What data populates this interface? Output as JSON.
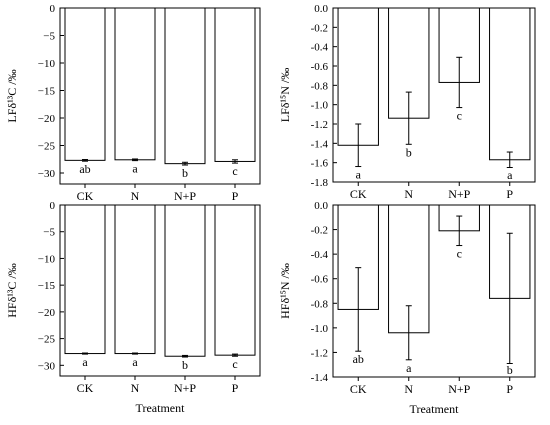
{
  "chart_data": [
    {
      "type": "bar",
      "panel": "top-left",
      "ylabel": "LFδ¹³C /‰",
      "categories": [
        "CK",
        "N",
        "N+P",
        "P"
      ],
      "values": [
        -27.7,
        -27.6,
        -28.3,
        -27.9
      ],
      "errors": [
        0.15,
        0.15,
        0.25,
        0.3
      ],
      "significance": [
        "ab",
        "a",
        "b",
        "c"
      ],
      "ylim": [
        -32,
        0
      ],
      "yticks": [
        0,
        -5,
        -10,
        -15,
        -20,
        -25,
        -30
      ],
      "ytick_labels": [
        "0",
        "−5",
        "−10",
        "−15",
        "−20",
        "−25",
        "−30"
      ],
      "xlabel": ""
    },
    {
      "type": "bar",
      "panel": "top-right",
      "ylabel": "LFδ¹⁵N /‰",
      "categories": [
        "CK",
        "N",
        "N+P",
        "P"
      ],
      "values": [
        -1.42,
        -1.14,
        -0.77,
        -1.57
      ],
      "errors": [
        0.22,
        0.27,
        0.26,
        0.08
      ],
      "significance": [
        "a",
        "b",
        "c",
        "a"
      ],
      "ylim": [
        -1.8,
        0
      ],
      "yticks": [
        0,
        -0.2,
        -0.4,
        -0.6,
        -0.8,
        -1.0,
        -1.2,
        -1.4,
        -1.6,
        -1.8
      ],
      "ytick_labels": [
        "0.0",
        "-0.2",
        "-0.4",
        "-0.6",
        "-0.8",
        "-1.0",
        "-1.2",
        "-1.4",
        "-1.6",
        "-1.8"
      ],
      "xlabel": ""
    },
    {
      "type": "bar",
      "panel": "bottom-left",
      "ylabel": "HFδ¹³C /‰",
      "categories": [
        "CK",
        "N",
        "N+P",
        "P"
      ],
      "values": [
        -27.8,
        -27.8,
        -28.3,
        -28.1
      ],
      "errors": [
        0.1,
        0.1,
        0.15,
        0.2
      ],
      "significance": [
        "a",
        "a",
        "b",
        "c"
      ],
      "ylim": [
        -32,
        0
      ],
      "yticks": [
        0,
        -5,
        -10,
        -15,
        -20,
        -25,
        -30
      ],
      "ytick_labels": [
        "0",
        "−5",
        "−10",
        "−15",
        "−20",
        "−25",
        "−30"
      ],
      "xlabel": "Treatment"
    },
    {
      "type": "bar",
      "panel": "bottom-right",
      "ylabel": "HFδ¹⁵N /‰",
      "categories": [
        "CK",
        "N",
        "N+P",
        "P"
      ],
      "values": [
        -0.85,
        -1.04,
        -0.21,
        -0.76
      ],
      "errors": [
        0.34,
        0.22,
        0.12,
        0.53
      ],
      "significance": [
        "ab",
        "a",
        "c",
        "b"
      ],
      "ylim": [
        -1.4,
        0
      ],
      "yticks": [
        0,
        -0.2,
        -0.4,
        -0.6,
        -0.8,
        -1.0,
        -1.2,
        -1.4
      ],
      "ytick_labels": [
        "0.0",
        "-0.2",
        "-0.4",
        "-0.6",
        "-0.8",
        "-1.0",
        "-1.2",
        "-1.4"
      ],
      "xlabel": "Treatment"
    }
  ]
}
